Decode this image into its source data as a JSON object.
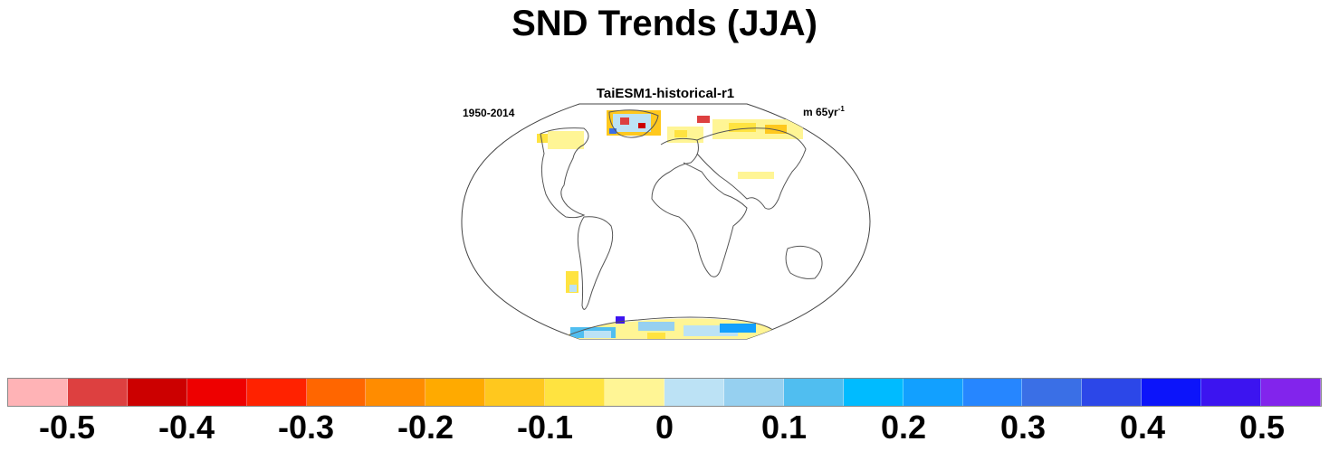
{
  "title": "SND Trends (JJA)",
  "panel": {
    "title": "TaiESM1-historical-r1",
    "left_label": "1950-2014",
    "units_main": "m 65yr",
    "units_exp": "-1"
  },
  "colorbar": {
    "colors": [
      "#FFB3B6",
      "#DD4040",
      "#CC0000",
      "#EE0000",
      "#FF2200",
      "#FF6600",
      "#FF8C00",
      "#FFAA00",
      "#FFC81E",
      "#FFE340",
      "#FFF595",
      "#BCE2F5",
      "#96D0F0",
      "#50BEF0",
      "#00BBFF",
      "#12A0FF",
      "#2686FF",
      "#3A6FE6",
      "#2C47E8",
      "#0C14FA",
      "#3C14F0",
      "#8224EC"
    ],
    "tick_labels": [
      "-0.5",
      "-0.4",
      "-0.3",
      "-0.2",
      "-0.1",
      "0",
      "0.1",
      "0.2",
      "0.3",
      "0.4",
      "0.5"
    ],
    "min": -0.55,
    "max": 0.55,
    "tick_values": [
      -0.5,
      -0.4,
      -0.3,
      -0.2,
      -0.1,
      0,
      0.1,
      0.2,
      0.3,
      0.4,
      0.5
    ]
  }
}
